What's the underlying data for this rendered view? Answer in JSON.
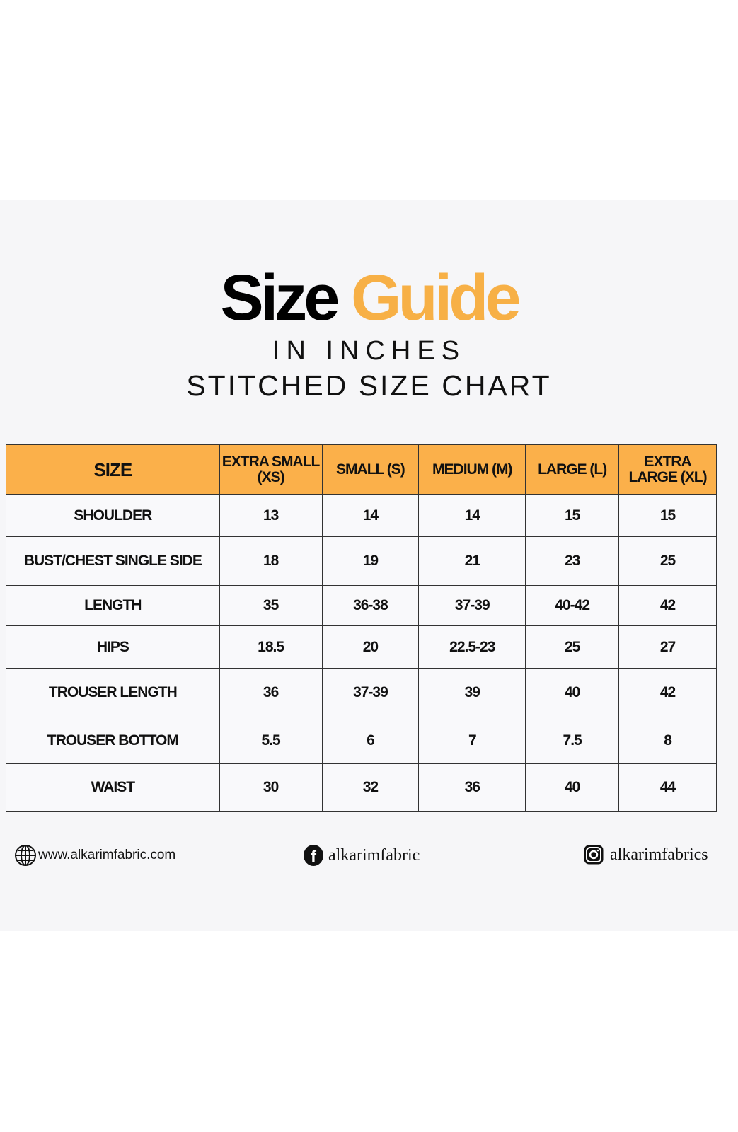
{
  "title": {
    "word1": "Size",
    "word2": "Guide"
  },
  "subtitle": "IN INCHES",
  "chart_title": "STITCHED SIZE CHART",
  "colors": {
    "accent": "#fbb04a",
    "title_accent": "#f7b046"
  },
  "table": {
    "headers": [
      "SIZE",
      "EXTRA SMALL (XS)",
      "SMALL (S)",
      "MEDIUM (M)",
      "LARGE (L)",
      "EXTRA LARGE (XL)"
    ],
    "rows": [
      [
        "SHOULDER",
        "13",
        "14",
        "14",
        "15",
        "15"
      ],
      [
        "BUST/CHEST SINGLE SIDE",
        "18",
        "19",
        "21",
        "23",
        "25"
      ],
      [
        "LENGTH",
        "35",
        "36-38",
        "37-39",
        "40-42",
        "42"
      ],
      [
        "HIPS",
        "18.5",
        "20",
        "22.5-23",
        "25",
        "27"
      ],
      [
        "TROUSER LENGTH",
        "36",
        "37-39",
        "39",
        "40",
        "42"
      ],
      [
        "TROUSER BOTTOM",
        "5.5",
        "6",
        "7",
        "7.5",
        "8"
      ],
      [
        "WAIST",
        "30",
        "32",
        "36",
        "40",
        "44"
      ]
    ]
  },
  "footer": {
    "website": "www.alkarimfabric.com",
    "facebook": "alkarimfabric",
    "instagram": "alkarimfabrics",
    "icons": [
      "globe-icon",
      "facebook-icon",
      "instagram-icon"
    ]
  }
}
